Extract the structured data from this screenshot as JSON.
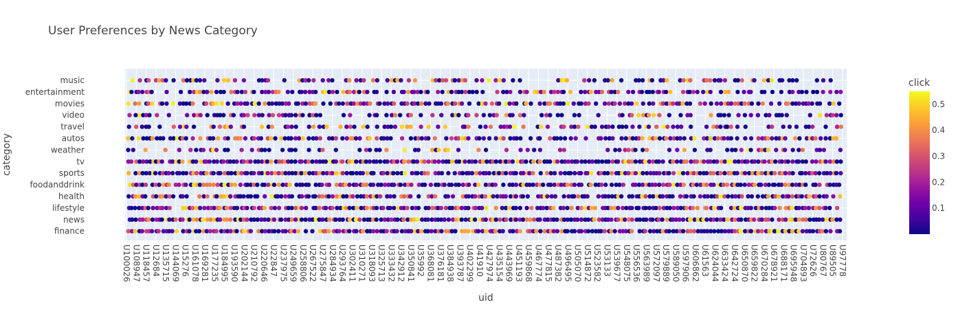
{
  "chart_data": {
    "type": "scatter",
    "title": "User Preferences by News Category",
    "xlabel": "uid",
    "ylabel": "category",
    "colorbar": {
      "title": "click",
      "range": [
        0.0,
        0.55
      ],
      "ticks": [
        "0.1",
        "0.2",
        "0.3",
        "0.4",
        "0.5"
      ],
      "tick_values": [
        0.1,
        0.2,
        0.3,
        0.4,
        0.5
      ]
    },
    "colorscale": [
      "#0d0887",
      "#46039f",
      "#7201a8",
      "#9c179e",
      "#bd3786",
      "#d8576b",
      "#ed7953",
      "#fb9f3a",
      "#fdca26",
      "#f0f921"
    ],
    "categories": [
      "music",
      "entertainment",
      "movies",
      "video",
      "travel",
      "autos",
      "weather",
      "tv",
      "sports",
      "foodanddrink",
      "health",
      "lifestyle",
      "news",
      "finance"
    ],
    "x_tick_labels": [
      "U100026",
      "U108947",
      "U118457",
      "U12684",
      "U135715",
      "U144069",
      "U15276",
      "U161078",
      "U169281",
      "U177235",
      "U184995",
      "U193590",
      "U202144",
      "U210792",
      "U220646",
      "U22847",
      "U237975",
      "U249659",
      "U258806",
      "U267522",
      "U275847",
      "U284934",
      "U293764",
      "U302411",
      "U310271",
      "U318093",
      "U325713",
      "U333432",
      "U342912",
      "U350841",
      "U35992",
      "U368081",
      "U376181",
      "U384938",
      "U393787",
      "U402299",
      "U41910",
      "U427974",
      "U435154",
      "U443969",
      "U451193",
      "U459868",
      "U467774",
      "U477815",
      "U487382",
      "U496495",
      "U505070",
      "U514872",
      "U523582",
      "U53133",
      "U539677",
      "U548075",
      "U556536",
      "U563989",
      "U572097",
      "U579889",
      "U589050",
      "U597906",
      "U606862",
      "U61563",
      "U624044",
      "U633424",
      "U642724",
      "U650870",
      "U659822",
      "U670284",
      "U678921",
      "U688171",
      "U695948",
      "U704893",
      "U72626",
      "U80767",
      "U89505",
      "U97778"
    ],
    "category_density": [
      0.55,
      0.75,
      0.82,
      0.6,
      0.5,
      0.72,
      0.42,
      0.97,
      0.96,
      0.9,
      0.88,
      0.9,
      0.99,
      0.94
    ],
    "grid": true,
    "legend": "colorbar-right"
  }
}
